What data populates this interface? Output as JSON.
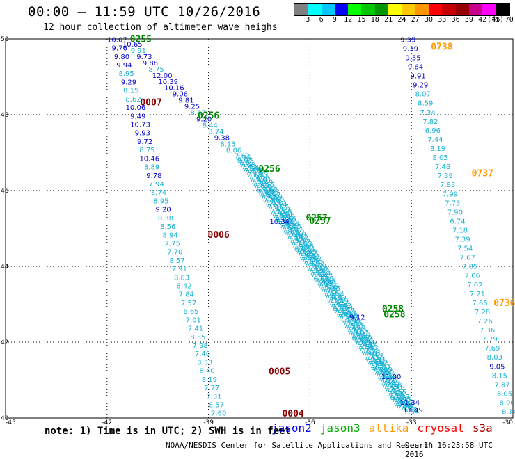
{
  "header": {
    "title": "00:00 – 11:59 UTC 10/26/2016",
    "subtitle": "12 hour collection of altimeter wave heighs"
  },
  "legend": {
    "colors": [
      "#808080",
      "#00ffff",
      "#00c8ff",
      "#0000ff",
      "#00ff00",
      "#00c800",
      "#009600",
      "#ffff00",
      "#ffc800",
      "#ff9600",
      "#ff0000",
      "#c80000",
      "#960000",
      "#c8008c",
      "#ff00ff",
      "#000000"
    ],
    "labels": [
      "3",
      "6",
      "9",
      "12",
      "15",
      "18",
      "21",
      "24",
      "27",
      "30",
      "33",
      "36",
      "39",
      "42",
      "45",
      "70"
    ],
    "unit": "(ft)"
  },
  "map": {
    "lon_range": [
      -45,
      -30
    ],
    "lat_range": [
      40,
      50
    ],
    "x_ticks": [
      "-45",
      "-42",
      "-39",
      "-36",
      "-33",
      "-30"
    ],
    "y_ticks": [
      "50",
      "48",
      "46",
      "44",
      "42",
      "40"
    ],
    "colors": {
      "cyan": "#1ab1d6",
      "blue": "#0000cc",
      "green": "#008800",
      "orange": "#ff9900",
      "maroon": "#880000"
    },
    "track_a": [
      {
        "v": "10.07",
        "c": "blue"
      },
      {
        "v": "9.76",
        "c": "blue"
      },
      {
        "v": "9.80",
        "c": "blue"
      },
      {
        "v": "9.94",
        "c": "blue"
      },
      {
        "v": "8.95",
        "c": "cyan"
      },
      {
        "v": "9.29",
        "c": "blue"
      },
      {
        "v": "8.15",
        "c": "cyan"
      },
      {
        "v": "8.62",
        "c": "cyan"
      },
      {
        "v": "10.06",
        "c": "blue"
      },
      {
        "v": "9.49",
        "c": "blue"
      },
      {
        "v": "10.73",
        "c": "blue"
      },
      {
        "v": "9.93",
        "c": "blue"
      },
      {
        "v": "9.72",
        "c": "blue"
      },
      {
        "v": "8.75",
        "c": "cyan"
      },
      {
        "v": "10.46",
        "c": "blue"
      },
      {
        "v": "8.89",
        "c": "cyan"
      },
      {
        "v": "9.78",
        "c": "blue"
      },
      {
        "v": "7.94",
        "c": "cyan"
      },
      {
        "v": "8.74",
        "c": "cyan"
      },
      {
        "v": "8.95",
        "c": "cyan"
      },
      {
        "v": "9.20",
        "c": "blue"
      },
      {
        "v": "8.38",
        "c": "cyan"
      },
      {
        "v": "8.56",
        "c": "cyan"
      },
      {
        "v": "8.94",
        "c": "cyan"
      },
      {
        "v": "7.75",
        "c": "cyan"
      },
      {
        "v": "7.70",
        "c": "cyan"
      },
      {
        "v": "8.57",
        "c": "cyan"
      },
      {
        "v": "7.91",
        "c": "cyan"
      },
      {
        "v": "8.83",
        "c": "cyan"
      },
      {
        "v": "8.42",
        "c": "cyan"
      },
      {
        "v": "7.84",
        "c": "cyan"
      },
      {
        "v": "7.57",
        "c": "cyan"
      },
      {
        "v": "6.65",
        "c": "cyan"
      },
      {
        "v": "7.01",
        "c": "cyan"
      },
      {
        "v": "7.41",
        "c": "cyan"
      },
      {
        "v": "8.35",
        "c": "cyan"
      },
      {
        "v": "7.98",
        "c": "cyan"
      },
      {
        "v": "7.40",
        "c": "cyan"
      },
      {
        "v": "8.33",
        "c": "cyan"
      },
      {
        "v": "8.40",
        "c": "cyan"
      },
      {
        "v": "8.19",
        "c": "cyan"
      },
      {
        "v": "7.77",
        "c": "cyan"
      },
      {
        "v": "7.31",
        "c": "cyan"
      },
      {
        "v": "8.57",
        "c": "cyan"
      },
      {
        "v": "7.60",
        "c": "cyan"
      }
    ],
    "track_b": [
      {
        "v": "10.65",
        "c": "blue"
      },
      {
        "v": "9.91",
        "c": "cyan"
      },
      {
        "v": "9.73",
        "c": "blue"
      },
      {
        "v": "9.88",
        "c": "blue"
      },
      {
        "v": "8.75",
        "c": "cyan"
      },
      {
        "v": "12.00",
        "c": "blue"
      },
      {
        "v": "10.39",
        "c": "blue"
      },
      {
        "v": "10.16",
        "c": "blue"
      },
      {
        "v": "9.06",
        "c": "blue"
      },
      {
        "v": "9.81",
        "c": "blue"
      },
      {
        "v": "9.25",
        "c": "blue"
      },
      {
        "v": "8.57",
        "c": "cyan"
      },
      {
        "v": "9.20",
        "c": "blue"
      },
      {
        "v": "8.44",
        "c": "cyan"
      },
      {
        "v": "8.74",
        "c": "cyan"
      },
      {
        "v": "9.38",
        "c": "blue"
      },
      {
        "v": "8.13",
        "c": "cyan"
      },
      {
        "v": "8.06",
        "c": "cyan"
      }
    ],
    "track_c": [
      {
        "v": "9.35",
        "c": "blue"
      },
      {
        "v": "9.39",
        "c": "blue"
      },
      {
        "v": "9.55",
        "c": "blue"
      },
      {
        "v": "9.64",
        "c": "blue"
      },
      {
        "v": "9.91",
        "c": "blue"
      },
      {
        "v": "9.29",
        "c": "blue"
      },
      {
        "v": "8.07",
        "c": "cyan"
      },
      {
        "v": "8.59",
        "c": "cyan"
      },
      {
        "v": "7.34",
        "c": "cyan"
      },
      {
        "v": "7.82",
        "c": "cyan"
      },
      {
        "v": "6.96",
        "c": "cyan"
      },
      {
        "v": "7.44",
        "c": "cyan"
      },
      {
        "v": "8.19",
        "c": "cyan"
      },
      {
        "v": "8.05",
        "c": "cyan"
      },
      {
        "v": "7.48",
        "c": "cyan"
      },
      {
        "v": "7.39",
        "c": "cyan"
      },
      {
        "v": "7.83",
        "c": "cyan"
      },
      {
        "v": "7.99",
        "c": "cyan"
      },
      {
        "v": "7.75",
        "c": "cyan"
      },
      {
        "v": "7.90",
        "c": "cyan"
      },
      {
        "v": "6.74",
        "c": "cyan"
      },
      {
        "v": "7.18",
        "c": "cyan"
      },
      {
        "v": "7.39",
        "c": "cyan"
      },
      {
        "v": "7.54",
        "c": "cyan"
      },
      {
        "v": "7.67",
        "c": "cyan"
      },
      {
        "v": "7.85",
        "c": "cyan"
      },
      {
        "v": "7.06",
        "c": "cyan"
      },
      {
        "v": "7.02",
        "c": "cyan"
      },
      {
        "v": "7.21",
        "c": "cyan"
      },
      {
        "v": "7.66",
        "c": "cyan"
      },
      {
        "v": "7.28",
        "c": "cyan"
      },
      {
        "v": "7.26",
        "c": "cyan"
      },
      {
        "v": "7.36",
        "c": "cyan"
      },
      {
        "v": "7.79",
        "c": "cyan"
      },
      {
        "v": "7.69",
        "c": "cyan"
      },
      {
        "v": "8.03",
        "c": "cyan"
      },
      {
        "v": "9.05",
        "c": "blue"
      },
      {
        "v": "8.15",
        "c": "cyan"
      },
      {
        "v": "7.87",
        "c": "cyan"
      },
      {
        "v": "8.05",
        "c": "cyan"
      },
      {
        "v": "8.90",
        "c": "cyan"
      },
      {
        "v": "8.14",
        "c": "cyan"
      }
    ],
    "track_d_mid": [
      {
        "v": "10.34",
        "c": "blue"
      },
      {
        "v": "9.12",
        "c": "blue"
      },
      {
        "v": "11.00",
        "c": "blue"
      },
      {
        "v": "11.34",
        "c": "blue"
      },
      {
        "v": "11.49",
        "c": "blue"
      }
    ],
    "pass_labels": [
      {
        "t": "0255",
        "c": "green",
        "lon": -41.0,
        "lat": 49.92
      },
      {
        "t": "0007",
        "c": "maroon",
        "lon": -40.7,
        "lat": 48.25
      },
      {
        "t": "0256",
        "c": "green",
        "lon": -39.0,
        "lat": 47.9
      },
      {
        "t": "0256",
        "c": "green",
        "lon": -37.2,
        "lat": 46.5
      },
      {
        "t": "0257",
        "c": "green",
        "lon": -35.8,
        "lat": 45.2
      },
      {
        "t": "0257",
        "c": "green",
        "lon": -35.7,
        "lat": 45.12
      },
      {
        "t": "0006",
        "c": "maroon",
        "lon": -38.7,
        "lat": 44.75
      },
      {
        "t": "0258",
        "c": "green",
        "lon": -33.55,
        "lat": 42.8
      },
      {
        "t": "0258",
        "c": "green",
        "lon": -33.5,
        "lat": 42.65
      },
      {
        "t": "0005",
        "c": "maroon",
        "lon": -36.9,
        "lat": 41.15
      },
      {
        "t": "0004",
        "c": "maroon",
        "lon": -36.5,
        "lat": 40.04
      },
      {
        "t": "0738",
        "c": "orange",
        "lon": -32.1,
        "lat": 49.72
      },
      {
        "t": "0737",
        "c": "orange",
        "lon": -30.9,
        "lat": 46.38
      },
      {
        "t": "0736",
        "c": "orange",
        "lon": -30.25,
        "lat": 42.95
      }
    ]
  },
  "footer": {
    "note": "note: 1) Time is in UTC; 2) SWH is in feet",
    "satellites": [
      {
        "name": "jason2",
        "color": "#0000ff"
      },
      {
        "name": "jason3",
        "color": "#00aa00"
      },
      {
        "name": "altika",
        "color": "#ff9900"
      },
      {
        "name": "cryosat",
        "color": "#ff0000"
      },
      {
        "name": "s3a",
        "color": "#aa0000"
      }
    ],
    "credit": "NOAA/NESDIS Center for Satellite Applications and Research",
    "timestamp": "Dec 14 16:23:58 UTC 2016"
  }
}
